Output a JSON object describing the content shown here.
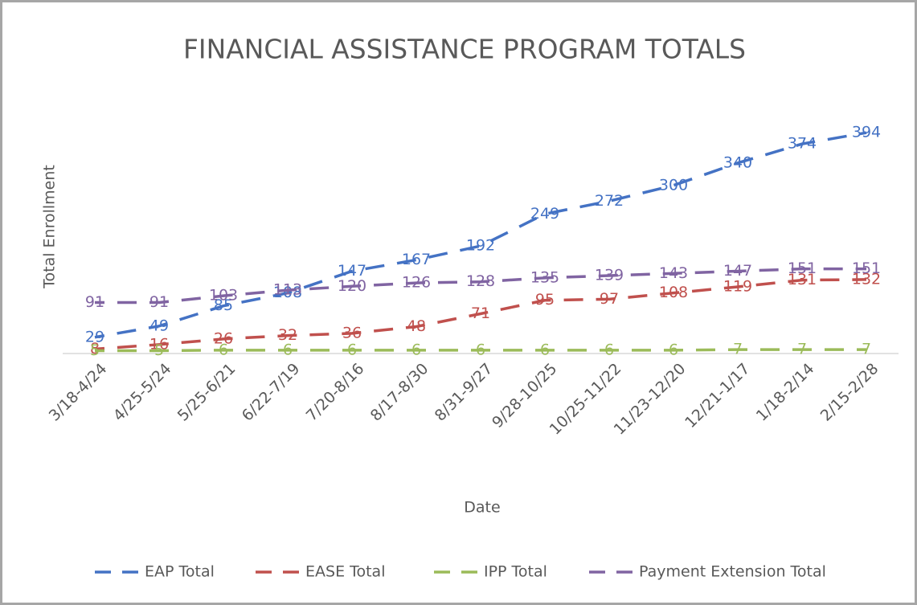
{
  "chart_data": {
    "type": "line",
    "title": "FINANCIAL ASSISTANCE PROGRAM TOTALS",
    "y_label": "Total Enrollment",
    "x_label": "Date",
    "categories": [
      "3/18-4/24",
      "4/25-5/24",
      "5/25-6/21",
      "6/22-7/19",
      "7/20-8/16",
      "8/17-8/30",
      "8/31-9/27",
      "9/28-10/25",
      "10/25-11/22",
      "11/23-12/20",
      "12/21-1/17",
      "1/18-2/14",
      "2/15-2/28"
    ],
    "ylim": [
      0,
      400
    ],
    "series": [
      {
        "name": "EAP Total",
        "color": "#4472c4",
        "values": [
          29,
          49,
          85,
          108,
          147,
          167,
          192,
          249,
          272,
          300,
          340,
          374,
          394
        ]
      },
      {
        "name": "EASE Total",
        "color": "#c0504d",
        "values": [
          8,
          16,
          26,
          32,
          36,
          48,
          71,
          95,
          97,
          108,
          119,
          131,
          132
        ]
      },
      {
        "name": "IPP Total",
        "color": "#9bbb59",
        "values": [
          5,
          5,
          6,
          6,
          6,
          6,
          6,
          6,
          6,
          6,
          7,
          7,
          7
        ]
      },
      {
        "name": "Payment Extension Total",
        "color": "#8064a2",
        "values": [
          91,
          91,
          103,
          113,
          120,
          126,
          128,
          135,
          139,
          143,
          147,
          151,
          151
        ]
      }
    ]
  }
}
